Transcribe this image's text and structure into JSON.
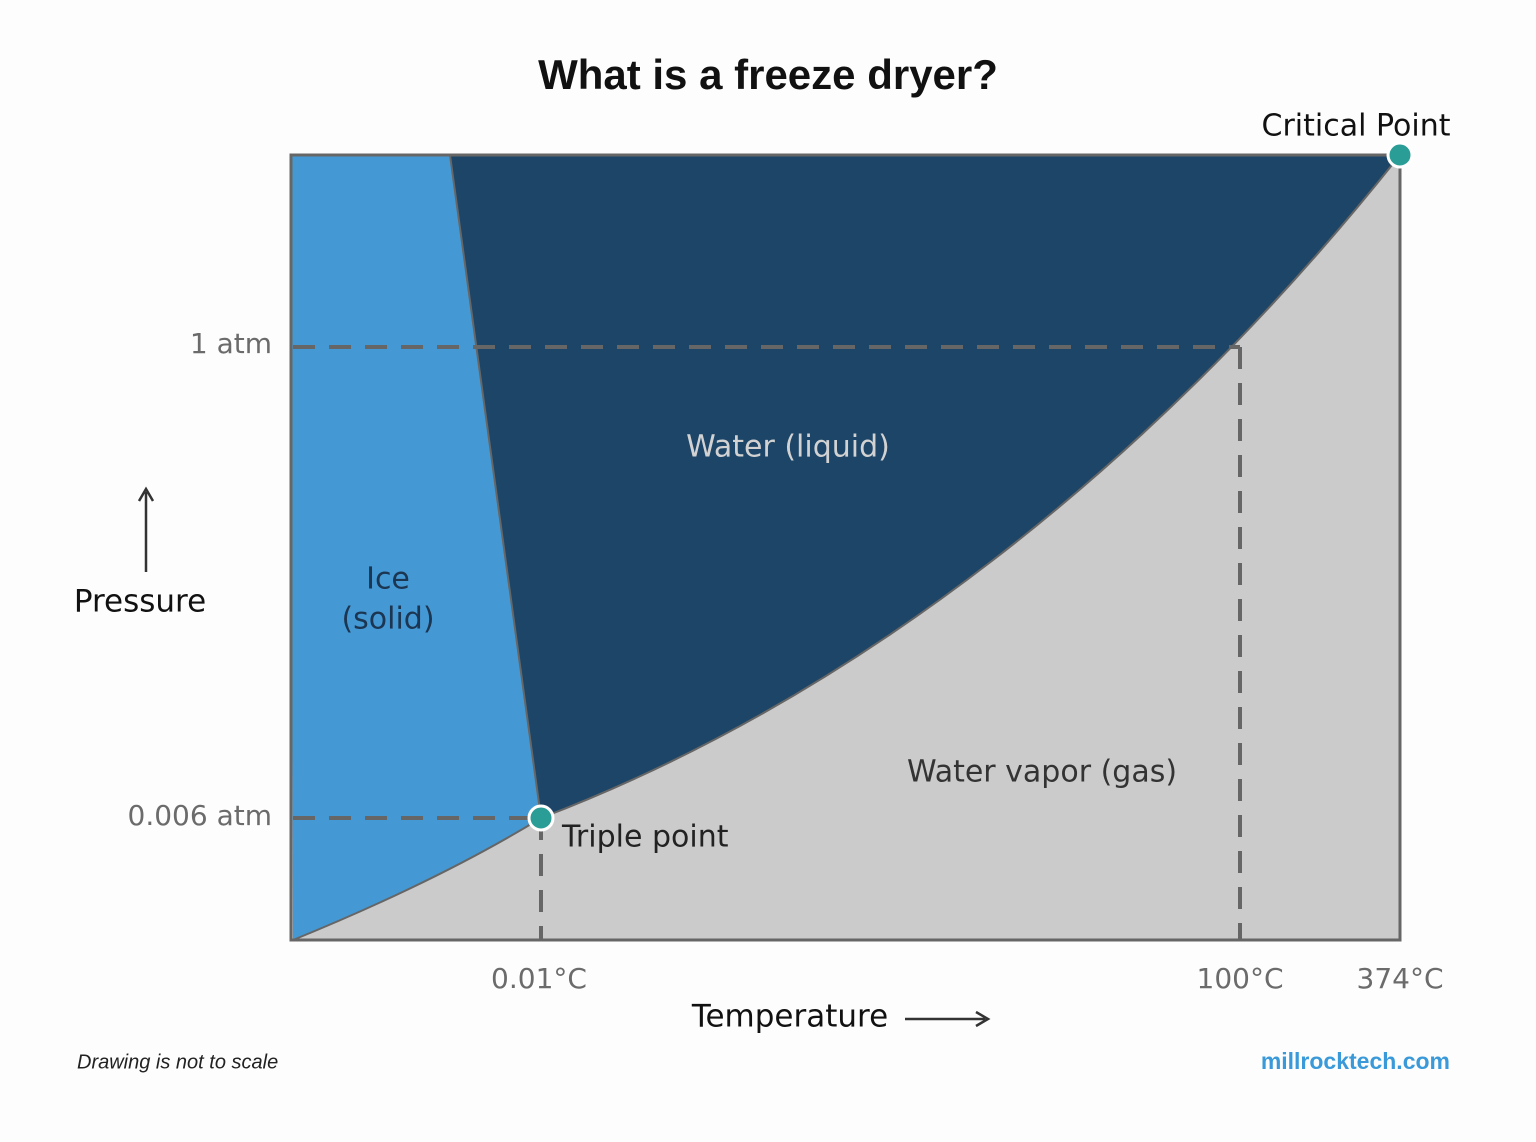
{
  "title": "What is a freeze dryer?",
  "axes": {
    "x_label": "Temperature",
    "y_label": "Pressure",
    "x_ticks": [
      "0.01°C",
      "100°C",
      "374°C"
    ],
    "y_ticks": [
      "1 atm",
      "0.006 atm"
    ]
  },
  "regions": {
    "ice": [
      "Ice",
      "(solid)"
    ],
    "liquid": "Water (liquid)",
    "vapor": "Water vapor (gas)"
  },
  "points": {
    "triple": "Triple point",
    "critical": "Critical Point"
  },
  "footer": {
    "note": "Drawing is not to scale",
    "source": "millrocktech.com"
  }
}
